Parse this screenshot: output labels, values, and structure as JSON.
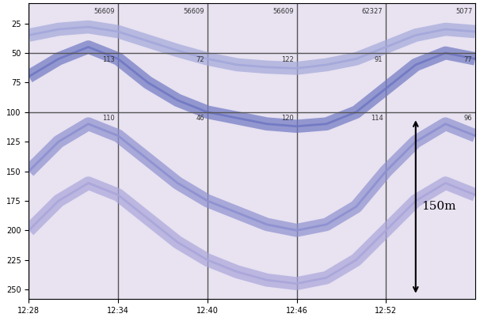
{
  "chart_data": {
    "type": "line",
    "x": [
      748,
      750,
      752,
      754,
      756,
      758,
      760,
      762,
      764,
      766,
      768,
      770,
      772,
      774,
      776,
      778
    ],
    "xlim": [
      748,
      778
    ],
    "xticks": [
      {
        "value": 748,
        "label": "12:28"
      },
      {
        "value": 754,
        "label": "12:34"
      },
      {
        "value": 760,
        "label": "12:40"
      },
      {
        "value": 766,
        "label": "12:46"
      },
      {
        "value": 772,
        "label": "12:52"
      }
    ],
    "ylim": [
      258,
      8
    ],
    "yticks": [
      25,
      50,
      75,
      100,
      125,
      150,
      175,
      200,
      225,
      250
    ],
    "grid": true,
    "depth_lines": [
      50,
      100
    ],
    "top_labels": [
      "56609",
      "56609",
      "56609",
      "62327",
      "5077"
    ],
    "cell_labels": [
      [
        113,
        72,
        122,
        91,
        77
      ],
      [
        110,
        46,
        120,
        114,
        96
      ]
    ],
    "annotations": [
      {
        "text": "150m",
        "x": 774,
        "from": 105,
        "to": 255
      }
    ],
    "series": [
      {
        "color": "#a3a8da",
        "values": [
          35,
          30,
          28,
          32,
          40,
          48,
          55,
          60,
          62,
          63,
          60,
          55,
          45,
          35,
          30,
          32
        ]
      },
      {
        "color": "#7078c2",
        "values": [
          70,
          55,
          45,
          55,
          75,
          90,
          100,
          105,
          110,
          112,
          110,
          100,
          80,
          60,
          50,
          55
        ]
      },
      {
        "color": "#8d90d0",
        "values": [
          150,
          125,
          110,
          120,
          140,
          160,
          175,
          185,
          195,
          200,
          195,
          180,
          150,
          125,
          110,
          120
        ]
      },
      {
        "color": "#aaa6da",
        "values": [
          200,
          175,
          160,
          170,
          190,
          210,
          225,
          235,
          242,
          245,
          240,
          225,
          200,
          175,
          160,
          170
        ]
      }
    ]
  }
}
